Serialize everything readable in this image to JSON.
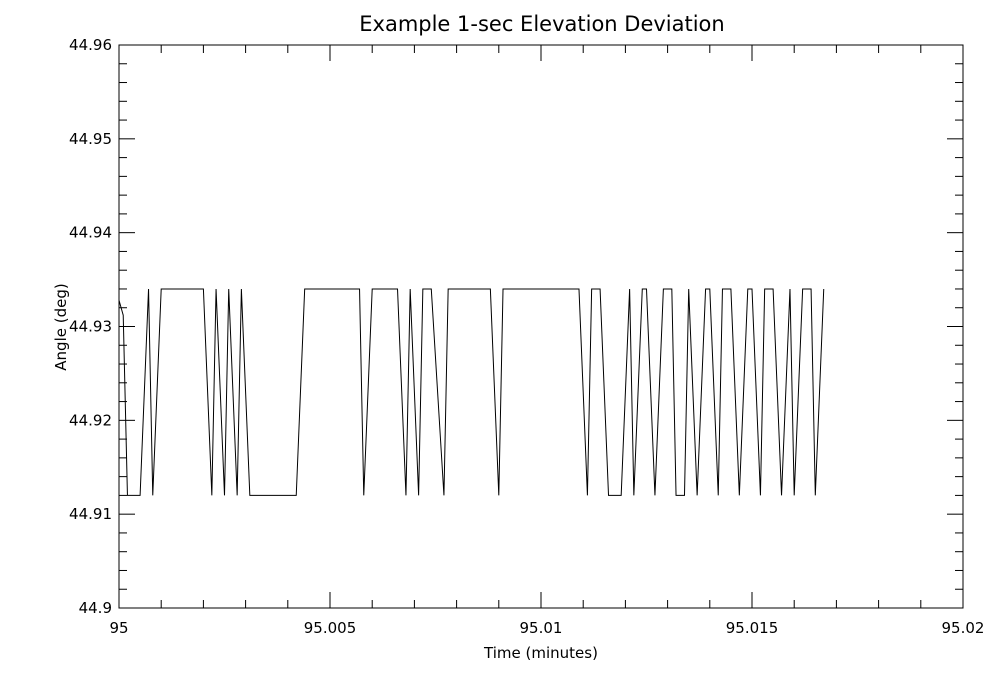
{
  "chart_data": {
    "type": "line",
    "title": "Example 1-sec Elevation Deviation",
    "xlabel": "Time (minutes)",
    "ylabel": "Angle (deg)",
    "xlim": [
      95,
      95.02
    ],
    "ylim": [
      44.9,
      44.96
    ],
    "xticks": [
      "95",
      "95.005",
      "95.01",
      "95.015",
      "95.02"
    ],
    "yticks": [
      "44.9",
      "44.91",
      "44.92",
      "44.93",
      "44.94",
      "44.95",
      "44.96"
    ],
    "grid": false,
    "line_color": "#000000",
    "series": [
      {
        "x": [
          95.0,
          95.0001,
          95.0002,
          95.0005,
          95.0007,
          95.0008,
          95.001,
          95.002,
          95.0022,
          95.0023,
          95.0025,
          95.0026,
          95.0028,
          95.0029,
          95.0031,
          95.0042,
          95.0044,
          95.0057,
          95.0058,
          95.006,
          95.0066,
          95.0068,
          95.0069,
          95.0071,
          95.0072,
          95.0074,
          95.0077,
          95.0078,
          95.008,
          95.0088,
          95.009,
          95.0091,
          95.0093,
          95.0109,
          95.0111,
          95.0112,
          95.0114,
          95.0116,
          95.0119,
          95.0121,
          95.0122,
          95.0124,
          95.0125,
          95.0127,
          95.0129,
          95.0131,
          95.0132,
          95.0134,
          95.0135,
          95.0137,
          95.0139,
          95.014,
          95.0142,
          95.0143,
          95.0145,
          95.0147,
          95.0149,
          95.015,
          95.0152,
          95.0153,
          95.0155,
          95.0157,
          95.0159,
          95.016,
          95.0162,
          95.0164,
          95.0165,
          95.0167
        ],
        "y": [
          44.9328,
          44.9312,
          44.912,
          44.912,
          44.934,
          44.912,
          44.934,
          44.934,
          44.912,
          44.934,
          44.912,
          44.934,
          44.912,
          44.934,
          44.912,
          44.912,
          44.934,
          44.934,
          44.912,
          44.934,
          44.934,
          44.912,
          44.934,
          44.912,
          44.934,
          44.934,
          44.912,
          44.934,
          44.934,
          44.934,
          44.912,
          44.934,
          44.934,
          44.934,
          44.912,
          44.934,
          44.934,
          44.912,
          44.912,
          44.934,
          44.912,
          44.934,
          44.934,
          44.912,
          44.934,
          44.934,
          44.912,
          44.912,
          44.934,
          44.912,
          44.934,
          44.934,
          44.912,
          44.934,
          44.934,
          44.912,
          44.934,
          44.934,
          44.912,
          44.934,
          44.934,
          44.912,
          44.934,
          44.912,
          44.934,
          44.934,
          44.912,
          44.934
        ]
      }
    ]
  }
}
